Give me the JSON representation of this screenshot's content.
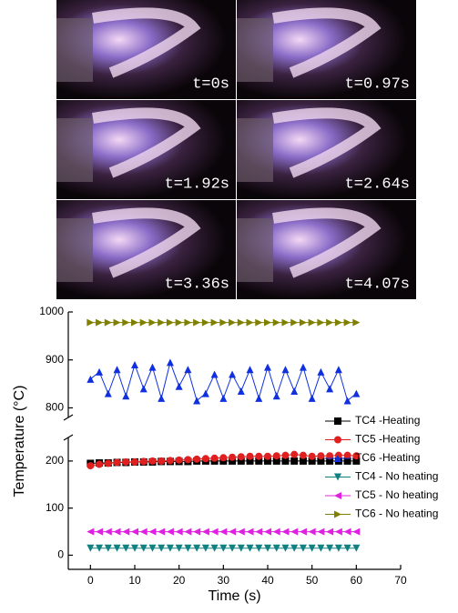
{
  "photos": {
    "labels": [
      "t=0s",
      "t=0.97s",
      "t=1.92s",
      "t=2.64s",
      "t=3.36s",
      "t=4.07s"
    ]
  },
  "chart_data": {
    "type": "line",
    "x_label": "Time (s)",
    "y_label": "Temperature (°C)",
    "x": [
      0,
      2,
      4,
      6,
      8,
      10,
      12,
      14,
      16,
      18,
      20,
      22,
      24,
      26,
      28,
      30,
      32,
      34,
      36,
      38,
      40,
      42,
      44,
      46,
      48,
      50,
      52,
      54,
      56,
      58,
      60
    ],
    "xlim": [
      -5,
      70
    ],
    "xticks": [
      0,
      10,
      20,
      30,
      40,
      50,
      60,
      70
    ],
    "ylim": [
      -30,
      1000
    ],
    "ybreak": [
      250,
      780
    ],
    "yticks": [
      0,
      100,
      200,
      800,
      900,
      1000
    ],
    "legend": "right",
    "series": [
      {
        "name": "TC4 -Heating",
        "color": "#000000",
        "marker": "square",
        "values": [
          195,
          196,
          196,
          197,
          197,
          198,
          198,
          198,
          199,
          199,
          199,
          199,
          200,
          200,
          200,
          200,
          200,
          200,
          200,
          200,
          200,
          200,
          200,
          200,
          200,
          200,
          200,
          200,
          200,
          200,
          200
        ]
      },
      {
        "name": "TC5 -Heating",
        "color": "#e02020",
        "marker": "circle",
        "values": [
          190,
          193,
          195,
          197,
          198,
          198,
          199,
          200,
          200,
          201,
          202,
          203,
          204,
          205,
          206,
          207,
          208,
          209,
          210,
          210,
          210,
          211,
          212,
          214,
          212,
          210,
          211,
          211,
          212,
          212,
          211
        ]
      },
      {
        "name": "TC6 -Heating",
        "color": "#1030e0",
        "marker": "triangle-up",
        "values": [
          860,
          875,
          830,
          880,
          825,
          890,
          840,
          885,
          820,
          895,
          845,
          880,
          815,
          830,
          870,
          820,
          870,
          835,
          880,
          820,
          885,
          825,
          880,
          835,
          885,
          820,
          875,
          840,
          880,
          815,
          830
        ]
      },
      {
        "name": "TC4 - No heating",
        "color": "#108080",
        "marker": "triangle-down",
        "values": [
          15,
          15,
          15,
          15,
          15,
          15,
          15,
          15,
          15,
          15,
          15,
          15,
          15,
          15,
          15,
          15,
          15,
          15,
          15,
          15,
          15,
          15,
          15,
          15,
          15,
          15,
          15,
          15,
          15,
          15,
          15
        ]
      },
      {
        "name": "TC5 - No heating",
        "color": "#e020e0",
        "marker": "triangle-left",
        "values": [
          50,
          50,
          50,
          50,
          50,
          50,
          50,
          50,
          50,
          50,
          50,
          50,
          50,
          50,
          50,
          50,
          50,
          50,
          50,
          50,
          50,
          50,
          50,
          50,
          50,
          50,
          50,
          50,
          50,
          50,
          50
        ]
      },
      {
        "name": "TC6 - No heating",
        "color": "#808000",
        "marker": "triangle-right",
        "values": [
          978,
          978,
          978,
          978,
          978,
          978,
          978,
          978,
          978,
          978,
          978,
          978,
          978,
          978,
          978,
          978,
          978,
          978,
          978,
          978,
          978,
          978,
          978,
          978,
          978,
          978,
          978,
          978,
          978,
          978,
          978
        ]
      }
    ]
  }
}
